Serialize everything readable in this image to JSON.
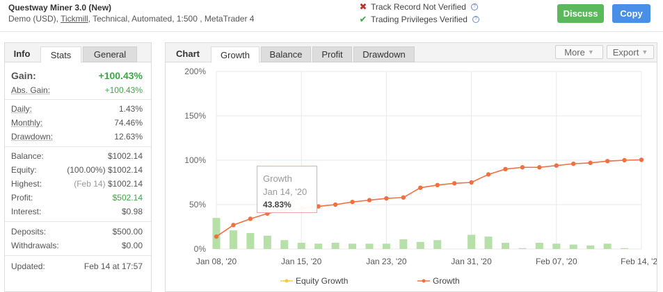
{
  "header": {
    "system_name": "Questway Miner 3.0 (New)",
    "sub_prefix": "Demo (USD), ",
    "broker": "Tickmill",
    "sub_suffix": ", Technical, Automated, 1:500 , MetaTrader 4",
    "track_record": "Track Record Not Verified",
    "trading_privileges": "Trading Privileges Verified",
    "discuss_label": "Discuss",
    "copy_label": "Copy"
  },
  "left_tabs": {
    "info": "Info",
    "stats": "Stats",
    "general": "General"
  },
  "gain": {
    "label": "Gain:",
    "value": "+100.43%"
  },
  "abs_gain": {
    "label": "Abs. Gain:",
    "value": "+100.43%"
  },
  "stats_rates": [
    {
      "label": "Daily:",
      "value": "1.43%"
    },
    {
      "label": "Monthly:",
      "value": "74.46%"
    },
    {
      "label": "Drawdown:",
      "value": "12.63%"
    }
  ],
  "balance": {
    "label": "Balance:",
    "value": "$1002.14"
  },
  "equity": {
    "label": "Equity:",
    "note": "(100.00%)",
    "value": "$1002.14"
  },
  "highest": {
    "label": "Highest:",
    "note": "(Feb 14)",
    "value": "$1002.14"
  },
  "profit": {
    "label": "Profit:",
    "value": "$502.14"
  },
  "interest": {
    "label": "Interest:",
    "value": "$0.98"
  },
  "deposits": {
    "label": "Deposits:",
    "value": "$500.00"
  },
  "withdrawals": {
    "label": "Withdrawals:",
    "value": "$0.00"
  },
  "updated": {
    "label": "Updated:",
    "value": "Feb 14 at 17:57"
  },
  "right_tabs": {
    "chart": "Chart",
    "growth": "Growth",
    "balance": "Balance",
    "profit": "Profit",
    "drawdown": "Drawdown",
    "more": "More",
    "export": "Export"
  },
  "tooltip": {
    "title": "Growth",
    "date": "Jan 14, '20",
    "value": "43.83%"
  },
  "colors": {
    "growth_line": "#f07040",
    "equity_line": "#f5c842",
    "bars": "#b6e0a8",
    "gain_green": "#3aa844"
  },
  "chart_data": {
    "type": "line",
    "ylim": [
      0,
      200
    ],
    "y_ticks": [
      "0%",
      "50%",
      "100%",
      "150%",
      "200%"
    ],
    "x_tick_labels": [
      "Jan 08, '20",
      "Jan 15, '20",
      "Jan 23, '20",
      "Jan 31, '20",
      "Feb 07, '20",
      "Feb 14, '20"
    ],
    "x_tick_index": [
      0,
      5,
      10,
      15,
      20,
      25
    ],
    "legend": [
      "Equity Growth",
      "Growth"
    ],
    "series": [
      {
        "name": "Growth",
        "values": [
          14,
          27,
          34,
          40,
          44,
          46,
          48,
          50,
          53,
          55,
          57,
          58,
          69,
          72,
          74,
          75,
          84,
          90,
          92,
          92,
          94,
          96,
          97,
          99,
          100,
          100.43
        ]
      }
    ],
    "bars": {
      "values": [
        35,
        21,
        18,
        15,
        10,
        7,
        6,
        7,
        6,
        6,
        6,
        11,
        8,
        10,
        0,
        16,
        14,
        7,
        1,
        7,
        6,
        5,
        4,
        6,
        1
      ]
    }
  }
}
